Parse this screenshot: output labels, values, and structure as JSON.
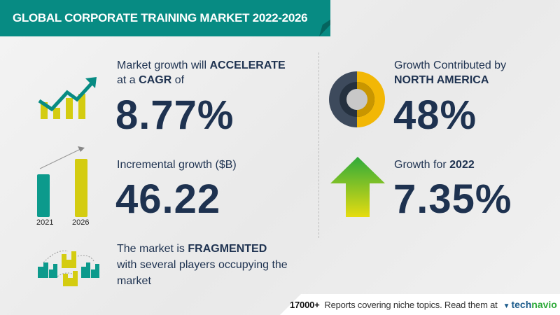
{
  "header": {
    "title": "GLOBAL CORPORATE TRAINING MARKET 2022-2026"
  },
  "cagr": {
    "line1_prefix": "Market growth will ",
    "line1_emph": "ACCELERATE",
    "line2_prefix": "at a ",
    "line2_emph": "CAGR",
    "line2_suffix": " of",
    "value": "8.77%"
  },
  "incremental": {
    "label": "Incremental growth ($B)",
    "value": "46.22",
    "bar_years": [
      "2021",
      "2026"
    ]
  },
  "market": {
    "line1_prefix": "The market is ",
    "line1_emph": "FRAGMENTED",
    "line2": "with several players occupying the",
    "line3": "market"
  },
  "region": {
    "line1": "Growth Contributed by",
    "line2": "NORTH AMERICA",
    "value": "48%",
    "share_percent": 48
  },
  "yoy": {
    "label_prefix": "Growth for ",
    "label_emph": "2022",
    "value": "7.35%"
  },
  "footer": {
    "count": "17000+",
    "text": "Reports covering niche topics. Read them at",
    "logo_a": "tech",
    "logo_b": "navio"
  },
  "colors": {
    "teal": "#078b83",
    "yellow": "#d4cc10",
    "navy": "#1e3250",
    "green": "#2eaa3a"
  }
}
